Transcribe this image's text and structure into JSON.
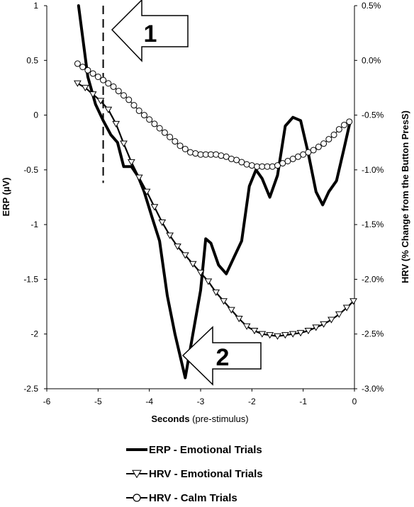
{
  "chart_data": {
    "type": "line",
    "xlabel": "Seconds",
    "xlabel_suffix": " (pre-stimulus)",
    "ylabel_left": "ERP (µV)",
    "ylabel_right": "HRV (% Change from the Button PresS)",
    "xlim": [
      -6,
      0
    ],
    "ylim_left": [
      -2.5,
      1
    ],
    "ylim_right": [
      -3.0,
      0.5
    ],
    "x_ticks": [
      "-6",
      "-5",
      "-4",
      "-3",
      "-2",
      "-1",
      "0"
    ],
    "y_left_ticks": [
      "1",
      "0.5",
      "0",
      "-0.5",
      "-1",
      "-1.5",
      "-2",
      "-2.5"
    ],
    "y_right_ticks": [
      "0.5%",
      "0.0%",
      "-0.5%",
      "-1.0%",
      "-1.5%",
      "-2.0%",
      "-2.5%",
      "-3.0%"
    ],
    "grid": false,
    "legend_position": "bottom",
    "series": [
      {
        "name": "ERP - Emotional Trials",
        "axis": "left",
        "marker": "none",
        "color": "#000000",
        "x": [
          -5.38,
          -5.2,
          -5.05,
          -4.9,
          -4.75,
          -4.62,
          -4.5,
          -4.35,
          -4.22,
          -4.1,
          -3.95,
          -3.8,
          -3.65,
          -3.5,
          -3.3,
          -3.15,
          -3.0,
          -2.9,
          -2.8,
          -2.65,
          -2.5,
          -2.35,
          -2.2,
          -2.05,
          -1.92,
          -1.8,
          -1.65,
          -1.5,
          -1.35,
          -1.2,
          -1.05,
          -0.9,
          -0.75,
          -0.62,
          -0.5,
          -0.35,
          -0.2,
          -0.08
        ],
        "values": [
          1.0,
          0.35,
          0.1,
          -0.05,
          -0.18,
          -0.25,
          -0.47,
          -0.47,
          -0.56,
          -0.7,
          -0.93,
          -1.15,
          -1.65,
          -2.0,
          -2.4,
          -2.0,
          -1.6,
          -1.13,
          -1.17,
          -1.37,
          -1.45,
          -1.3,
          -1.15,
          -0.65,
          -0.5,
          -0.58,
          -0.75,
          -0.55,
          -0.1,
          -0.02,
          -0.05,
          -0.35,
          -0.7,
          -0.82,
          -0.7,
          -0.6,
          -0.3,
          -0.05
        ]
      },
      {
        "name": "HRV - Emotional Trials",
        "axis": "right",
        "marker": "triangle-down",
        "color": "#000000",
        "x": [
          -5.4,
          -5.25,
          -5.1,
          -4.95,
          -4.8,
          -4.65,
          -4.5,
          -4.35,
          -4.2,
          -4.05,
          -3.9,
          -3.75,
          -3.6,
          -3.45,
          -3.3,
          -3.15,
          -3.0,
          -2.85,
          -2.7,
          -2.55,
          -2.4,
          -2.25,
          -2.1,
          -1.95,
          -1.8,
          -1.65,
          -1.5,
          -1.35,
          -1.2,
          -1.05,
          -0.9,
          -0.75,
          -0.6,
          -0.45,
          -0.3,
          -0.15,
          -0.02
        ],
        "values": [
          -0.21,
          -0.25,
          -0.31,
          -0.37,
          -0.45,
          -0.58,
          -0.76,
          -0.93,
          -1.07,
          -1.2,
          -1.34,
          -1.48,
          -1.6,
          -1.7,
          -1.78,
          -1.86,
          -1.94,
          -2.02,
          -2.12,
          -2.2,
          -2.28,
          -2.36,
          -2.43,
          -2.47,
          -2.5,
          -2.51,
          -2.52,
          -2.51,
          -2.5,
          -2.49,
          -2.47,
          -2.44,
          -2.41,
          -2.37,
          -2.32,
          -2.26,
          -2.2
        ]
      },
      {
        "name": "HRV - Calm Trials",
        "axis": "right",
        "marker": "circle",
        "color": "#000000",
        "x": [
          -5.4,
          -5.3,
          -5.2,
          -5.1,
          -5.0,
          -4.9,
          -4.8,
          -4.7,
          -4.6,
          -4.5,
          -4.4,
          -4.3,
          -4.2,
          -4.1,
          -4.0,
          -3.9,
          -3.8,
          -3.7,
          -3.6,
          -3.5,
          -3.4,
          -3.3,
          -3.2,
          -3.1,
          -3.0,
          -2.9,
          -2.8,
          -2.7,
          -2.6,
          -2.5,
          -2.4,
          -2.3,
          -2.2,
          -2.1,
          -2.0,
          -1.9,
          -1.8,
          -1.7,
          -1.6,
          -1.5,
          -1.4,
          -1.3,
          -1.2,
          -1.1,
          -1.0,
          -0.9,
          -0.8,
          -0.7,
          -0.6,
          -0.5,
          -0.4,
          -0.3,
          -0.2,
          -0.1
        ],
        "values": [
          -0.03,
          -0.06,
          -0.09,
          -0.12,
          -0.15,
          -0.18,
          -0.21,
          -0.24,
          -0.28,
          -0.32,
          -0.36,
          -0.41,
          -0.46,
          -0.5,
          -0.54,
          -0.58,
          -0.62,
          -0.66,
          -0.7,
          -0.74,
          -0.78,
          -0.81,
          -0.84,
          -0.85,
          -0.86,
          -0.86,
          -0.86,
          -0.86,
          -0.87,
          -0.88,
          -0.9,
          -0.91,
          -0.93,
          -0.95,
          -0.96,
          -0.97,
          -0.97,
          -0.97,
          -0.97,
          -0.96,
          -0.94,
          -0.92,
          -0.9,
          -0.88,
          -0.86,
          -0.84,
          -0.82,
          -0.79,
          -0.76,
          -0.72,
          -0.68,
          -0.63,
          -0.59,
          -0.56
        ]
      }
    ],
    "annotations": [
      {
        "label": "1",
        "type": "dashed-line-marker",
        "x": -4.9,
        "y_from": -0.62,
        "y_to": 1.0
      },
      {
        "label": "2",
        "type": "arrow-callout",
        "points_to_x": -3.5,
        "points_to_y": -2.25
      }
    ]
  }
}
